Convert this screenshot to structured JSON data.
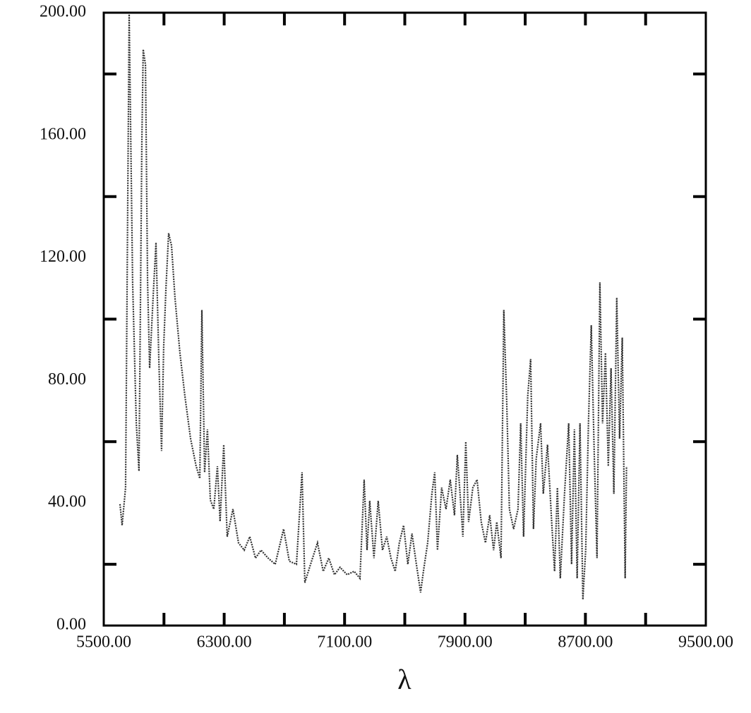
{
  "chart_data": {
    "type": "line",
    "x_label": "λ",
    "xlim": [
      5500,
      9500
    ],
    "ylim": [
      0,
      200
    ],
    "xticks": [
      {
        "value": 5500,
        "label": "5500.00"
      },
      {
        "value": 6300,
        "label": "6300.00"
      },
      {
        "value": 7100,
        "label": "7100.00"
      },
      {
        "value": 7900,
        "label": "7900.00"
      },
      {
        "value": 8700,
        "label": "8700.00"
      },
      {
        "value": 9500,
        "label": "9500.00"
      }
    ],
    "yticks": [
      {
        "value": 0,
        "label": "0.00"
      },
      {
        "value": 40,
        "label": "40.00"
      },
      {
        "value": 80,
        "label": "80.00"
      },
      {
        "value": 120,
        "label": "120.00"
      },
      {
        "value": 160,
        "label": "160.00"
      },
      {
        "value": 200,
        "label": "200.00"
      }
    ],
    "xticks_minor": [
      5900,
      6700,
      7500,
      8300,
      9100
    ],
    "yticks_minor": [
      20,
      60,
      100,
      140,
      180
    ],
    "grid": false,
    "series": [
      {
        "color": "#333333",
        "x": [
          5608,
          5622,
          5645,
          5669,
          5692,
          5716,
          5734,
          5753,
          5762,
          5777,
          5791,
          5805,
          5828,
          5847,
          5866,
          5884,
          5898,
          5913,
          5931,
          5950,
          5973,
          6006,
          6039,
          6077,
          6114,
          6138,
          6152,
          6170,
          6189,
          6208,
          6231,
          6255,
          6273,
          6297,
          6320,
          6358,
          6395,
          6433,
          6470,
          6508,
          6545,
          6592,
          6639,
          6695,
          6733,
          6780,
          6817,
          6836,
          6874,
          6920,
          6958,
          6995,
          7033,
          7070,
          7117,
          7164,
          7202,
          7230,
          7249,
          7267,
          7295,
          7323,
          7352,
          7380,
          7408,
          7436,
          7464,
          7492,
          7520,
          7548,
          7577,
          7605,
          7624,
          7652,
          7680,
          7699,
          7717,
          7745,
          7774,
          7802,
          7830,
          7849,
          7867,
          7886,
          7905,
          7924,
          7952,
          7980,
          8008,
          8036,
          8064,
          8090,
          8111,
          8139,
          8158,
          8177,
          8195,
          8223,
          8252,
          8270,
          8289,
          8317,
          8336,
          8355,
          8373,
          8402,
          8420,
          8448,
          8476,
          8495,
          8514,
          8533,
          8561,
          8589,
          8608,
          8627,
          8645,
          8664,
          8683,
          8702,
          8720,
          8739,
          8758,
          8777,
          8796,
          8814,
          8833,
          8852,
          8870,
          8889,
          8908,
          8927,
          8945,
          8964,
          8973
        ],
        "values": [
          39.6,
          32.7,
          45,
          199.5,
          112,
          66,
          50.4,
          158,
          188,
          183,
          112,
          84,
          107,
          125,
          87,
          57,
          91,
          110,
          128,
          124,
          107,
          89,
          75,
          61,
          52,
          48,
          103,
          50,
          64,
          41,
          38,
          52,
          34,
          59,
          29,
          38,
          27,
          24.6,
          29,
          22,
          24.6,
          22,
          20,
          31.5,
          21,
          20,
          50,
          14,
          20,
          27,
          17.7,
          22,
          16.6,
          19,
          16.6,
          17.7,
          15.4,
          47.6,
          24.6,
          40.7,
          22,
          40.7,
          24.6,
          29,
          22,
          17.7,
          27,
          32.7,
          20,
          30,
          20,
          10.8,
          17.7,
          27,
          43,
          50,
          24.6,
          45,
          38,
          47.6,
          36,
          55.7,
          43,
          29,
          60,
          33.8,
          45,
          47.6,
          33.8,
          27,
          36,
          24.6,
          33.8,
          22,
          103,
          73,
          38,
          31.5,
          38,
          66,
          29,
          75,
          87,
          31.5,
          54.5,
          66,
          43,
          59,
          33.8,
          17.7,
          45,
          15.4,
          43,
          66,
          20,
          64,
          15.4,
          66,
          8.5,
          24.6,
          66,
          98,
          57,
          22,
          112,
          66,
          89,
          52,
          84,
          43,
          107,
          61,
          94,
          15.4,
          52
        ]
      }
    ]
  }
}
